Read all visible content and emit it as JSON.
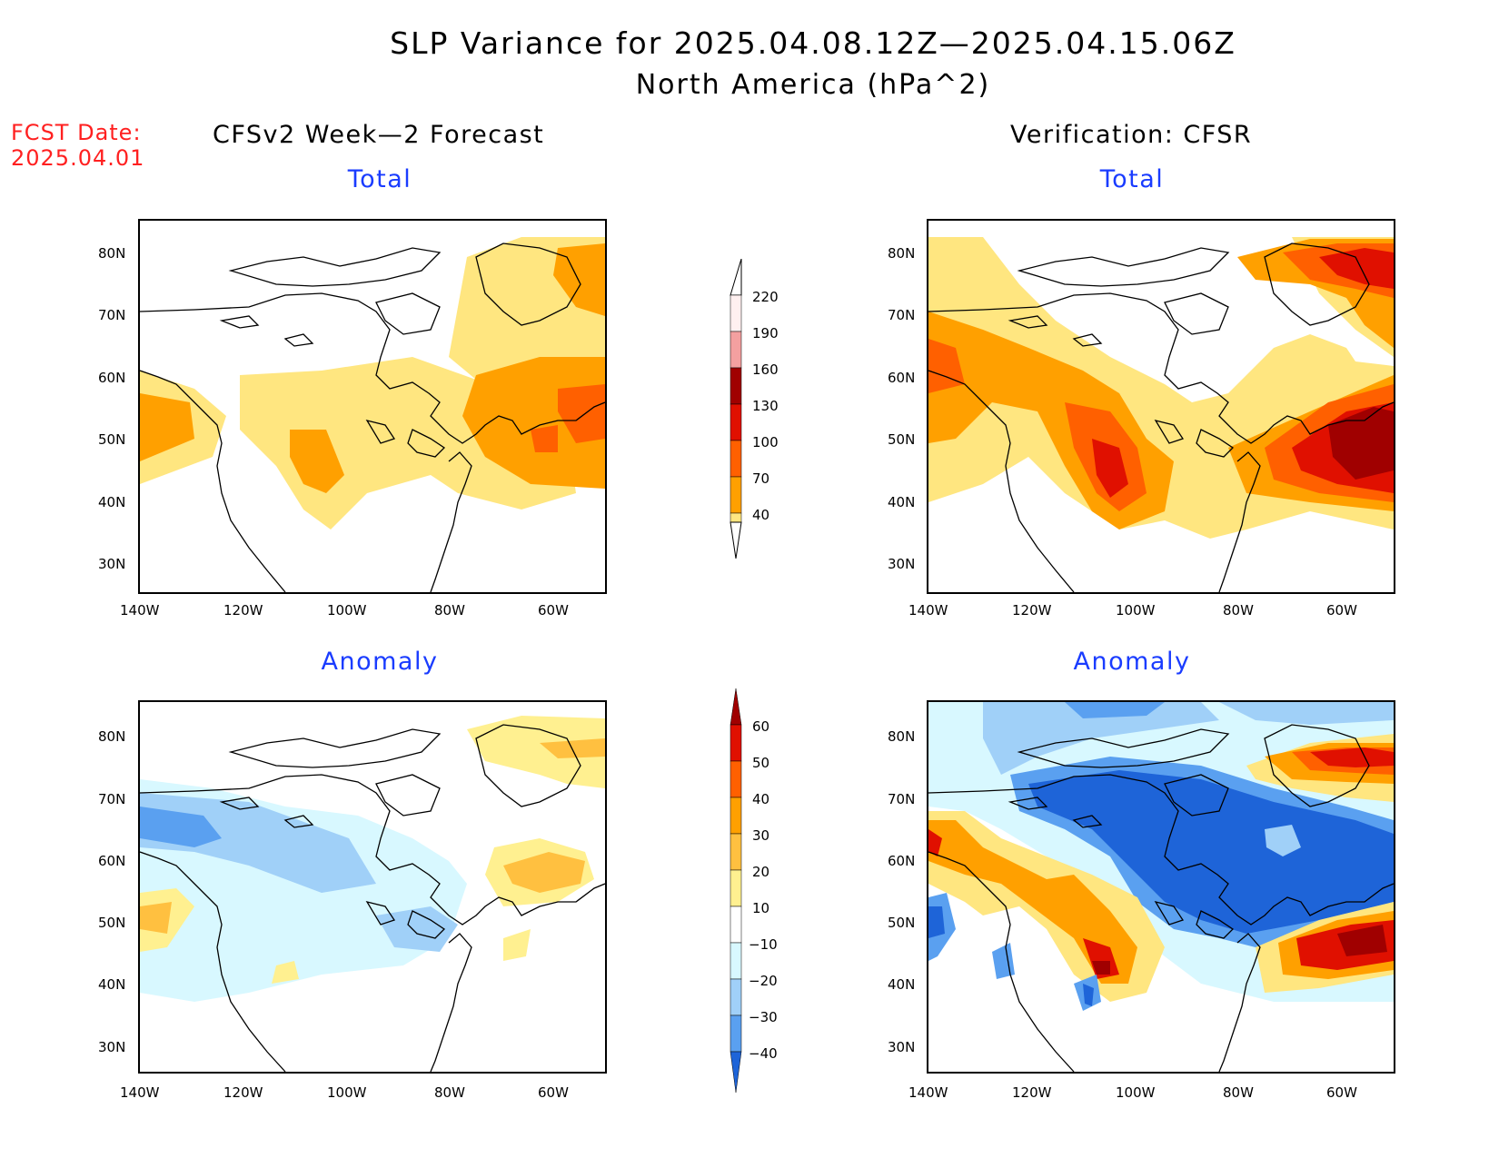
{
  "title": {
    "line1": "SLP Variance for 2025.04.08.12Z—2025.04.15.06Z",
    "line2": "North America (hPa^2)"
  },
  "fcst": {
    "label": "FCST Date:",
    "date": "2025.04.01"
  },
  "columns": {
    "left": "CFSv2 Week—2 Forecast",
    "right": "Verification: CFSR"
  },
  "panels": {
    "tl": "Total",
    "tr": "Total",
    "bl": "Anomaly",
    "br": "Anomaly"
  },
  "axes": {
    "lat_labels": [
      "80N",
      "70N",
      "60N",
      "50N",
      "40N",
      "30N"
    ],
    "lon_labels": [
      "140W",
      "120W",
      "100W",
      "80W",
      "60W"
    ]
  },
  "colorbars": {
    "total": {
      "labels": [
        "220",
        "190",
        "160",
        "130",
        "100",
        "70",
        "40"
      ],
      "colors": [
        "#fff0f0",
        "#f4a0a0",
        "#a00000",
        "#e01000",
        "#ff6000",
        "#ffa000",
        "#ffe680"
      ]
    },
    "anomaly": {
      "labels": [
        "60",
        "50",
        "40",
        "30",
        "20",
        "10",
        "−10",
        "−20",
        "−30",
        "−40"
      ],
      "colors": [
        "#a00000",
        "#e01000",
        "#ff6000",
        "#ffa000",
        "#ffc040",
        "#fff090",
        "#ffffff",
        "#d8f8ff",
        "#a0d0f8",
        "#5aa0f0",
        "#1e64d8"
      ]
    }
  }
}
